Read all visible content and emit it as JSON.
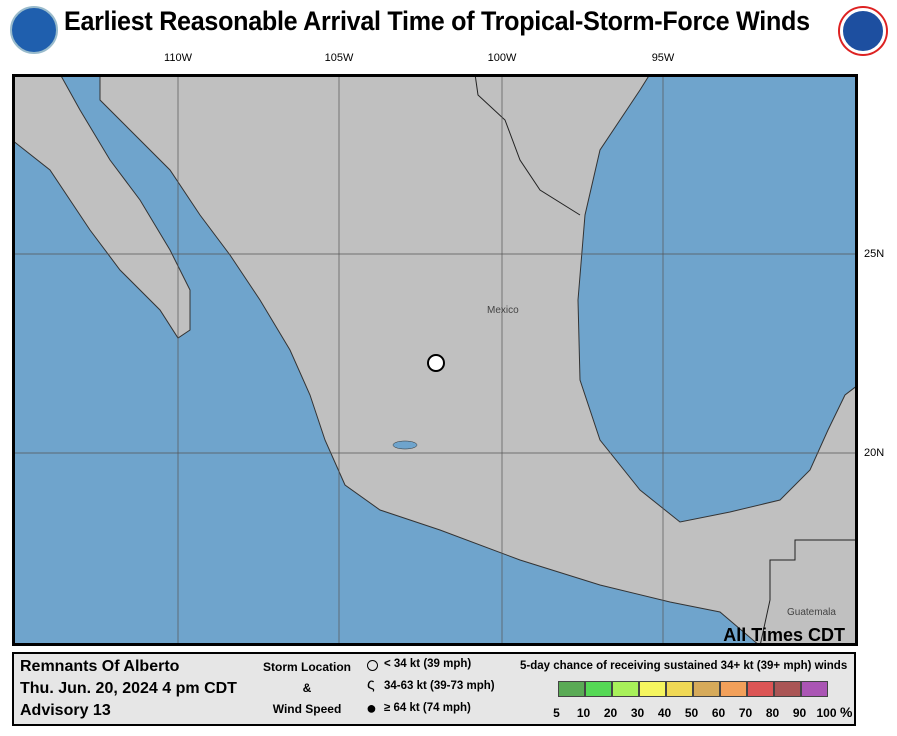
{
  "header": {
    "title": "Earliest Reasonable Arrival Time of Tropical-Storm-Force Winds",
    "logo_left": "NOAA",
    "logo_right": "NATIONAL WEATHER SERVICE"
  },
  "map": {
    "longitude_labels": [
      "110W",
      "105W",
      "100W",
      "95W"
    ],
    "latitude_labels": [
      "25N",
      "20N"
    ],
    "place_labels": {
      "mexico": "Mexico",
      "guatemala": "Guatemala"
    },
    "times_note": "All Times CDT",
    "storm_location": {
      "symbol": "open-circle",
      "lat": 22.3,
      "lon": -101.9
    },
    "colors": {
      "ocean": "#6fa4cc",
      "land": "#c0c0c0"
    }
  },
  "legend": {
    "storm_name": "Remnants Of Alberto",
    "datetime": "Thu. Jun. 20, 2024  4 pm CDT",
    "advisory": "Advisory 13",
    "storm_location_label": "Storm Location",
    "ampersand": "&",
    "wind_speed_label": "Wind Speed",
    "wind_categories": [
      "< 34 kt (39 mph)",
      "34-63 kt (39-73 mph)",
      "≥ 64 kt (74 mph)"
    ],
    "probability_title": "5-day chance of receiving sustained 34+ kt (39+ mph) winds",
    "probability_colors": [
      "#5aaa55",
      "#55d855",
      "#a8f05a",
      "#f5f55f",
      "#f0d855",
      "#d6aa5a",
      "#f2a05a",
      "#dc5555",
      "#aa5555",
      "#aa55b4"
    ],
    "probability_ticks": [
      "5",
      "10",
      "20",
      "30",
      "40",
      "50",
      "60",
      "70",
      "80",
      "90",
      "100"
    ],
    "percent_sign": "%"
  }
}
